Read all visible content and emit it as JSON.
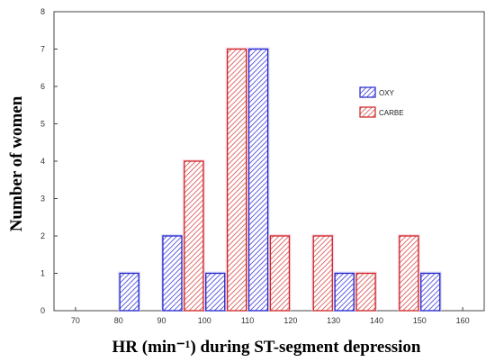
{
  "chart_data": {
    "type": "bar",
    "xlabel": "HR (min⁻¹) during ST-segment depression",
    "ylabel": "Number of women",
    "x_ticks": [
      "70",
      "80",
      "90",
      "100",
      "110",
      "120",
      "130",
      "140",
      "150",
      "160"
    ],
    "y_ticks": [
      "0",
      "1",
      "2",
      "3",
      "4",
      "5",
      "6",
      "7",
      "8"
    ],
    "xlim": [
      65,
      165
    ],
    "ylim": [
      0,
      8
    ],
    "grid": false,
    "legend_position": "right",
    "bar_width": 4.4,
    "series": [
      {
        "name": "OXY",
        "color": "#2222cc",
        "x": [
          82.5,
          92.5,
          102.5,
          112.5,
          132.5,
          152.5
        ],
        "values": [
          1,
          2,
          1,
          7,
          1,
          1
        ]
      },
      {
        "name": "CARBE",
        "color": "#cc2222",
        "x": [
          97.5,
          107.5,
          117.5,
          127.5,
          137.5,
          147.5
        ],
        "values": [
          4,
          7,
          2,
          2,
          1,
          2
        ]
      }
    ]
  }
}
